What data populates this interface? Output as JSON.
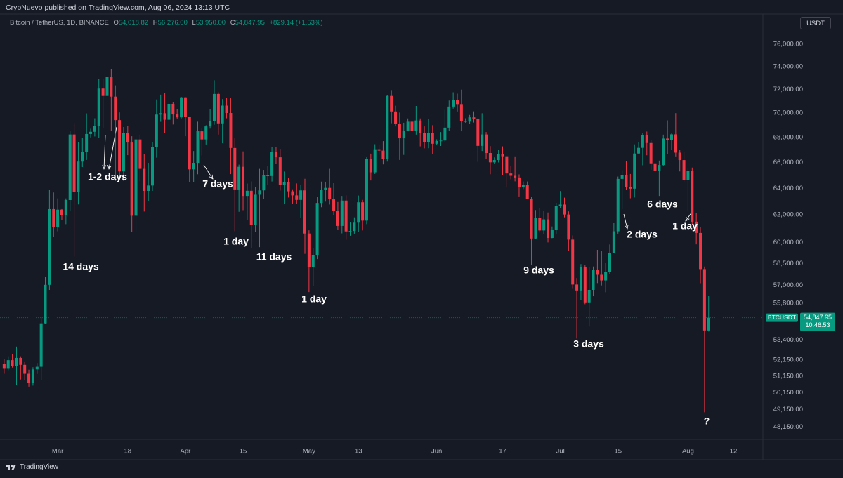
{
  "header": {
    "publisher": "CrypNuevo published on TradingView.com, Aug 06, 2024 13:13 UTC"
  },
  "footer": {
    "brand": "TradingView"
  },
  "chart_data": {
    "type": "candlestick",
    "title": "Bitcoin / TetherUS, 1D, BINANCE",
    "ohlc_legend": [
      {
        "key": "O",
        "label": "54,018.82"
      },
      {
        "key": "H",
        "label": "56,276.00"
      },
      {
        "key": "L",
        "label": "53,950.00"
      },
      {
        "key": "C",
        "label": "54,847.95"
      }
    ],
    "change": "+829.14 (+1.53%)",
    "currency": "USDT",
    "up_color": "#089981",
    "down_color": "#f23645",
    "log_scale": true,
    "grid": false,
    "xlim": [
      "2024-02-16",
      "2024-08-19"
    ],
    "ylim": [
      47480,
      77150
    ],
    "yticks": [
      {
        "value": 76000,
        "label": "76,000.00"
      },
      {
        "value": 74000,
        "label": "74,000.00"
      },
      {
        "value": 72000,
        "label": "72,000.00"
      },
      {
        "value": 70000,
        "label": "70,000.00"
      },
      {
        "value": 68000,
        "label": "68,000.00"
      },
      {
        "value": 66000,
        "label": "66,000.00"
      },
      {
        "value": 64000,
        "label": "64,000.00"
      },
      {
        "value": 62000,
        "label": "62,000.00"
      },
      {
        "value": 60000,
        "label": "60,000.00"
      },
      {
        "value": 58500,
        "label": "58,500.00"
      },
      {
        "value": 57000,
        "label": "57,000.00"
      },
      {
        "value": 55800,
        "label": "55,800.00"
      },
      {
        "value": 53400,
        "label": "53,400.00"
      },
      {
        "value": 52150,
        "label": "52,150.00"
      },
      {
        "value": 51150,
        "label": "51,150.00"
      },
      {
        "value": 50150,
        "label": "50,150.00"
      },
      {
        "value": 49150,
        "label": "49,150.00"
      },
      {
        "value": 48150,
        "label": "48,150.00"
      }
    ],
    "xticks": [
      {
        "value": "2024-03-01",
        "label": "Mar"
      },
      {
        "value": "2024-03-18",
        "label": "18"
      },
      {
        "value": "2024-04-01",
        "label": "Apr"
      },
      {
        "value": "2024-04-15",
        "label": "15"
      },
      {
        "value": "2024-05-01",
        "label": "May"
      },
      {
        "value": "2024-05-13",
        "label": "13"
      },
      {
        "value": "2024-06-01",
        "label": "Jun"
      },
      {
        "value": "2024-06-17",
        "label": "17"
      },
      {
        "value": "2024-07-01",
        "label": "Jul"
      },
      {
        "value": "2024-07-15",
        "label": "15"
      },
      {
        "value": "2024-08-01",
        "label": "Aug"
      },
      {
        "value": "2024-08-12",
        "label": "12"
      }
    ],
    "last_price": {
      "symbol": "BTCUSDT",
      "value": 54847.95,
      "label": "54,847.95",
      "countdown": "10:46:53"
    },
    "annotations": [
      "1-2 days",
      "7 days",
      "14 days",
      "1 day",
      "11 days",
      "1 day",
      "9 days",
      "3 days",
      "2 days",
      "6 days",
      "1 day",
      "?"
    ],
    "x": [
      "2024-02-17",
      "2024-02-18",
      "2024-02-19",
      "2024-02-20",
      "2024-02-21",
      "2024-02-22",
      "2024-02-23",
      "2024-02-24",
      "2024-02-25",
      "2024-02-26",
      "2024-02-27",
      "2024-02-28",
      "2024-02-29",
      "2024-03-01",
      "2024-03-02",
      "2024-03-03",
      "2024-03-04",
      "2024-03-05",
      "2024-03-06",
      "2024-03-07",
      "2024-03-08",
      "2024-03-09",
      "2024-03-10",
      "2024-03-11",
      "2024-03-12",
      "2024-03-13",
      "2024-03-14",
      "2024-03-15",
      "2024-03-16",
      "2024-03-17",
      "2024-03-18",
      "2024-03-19",
      "2024-03-20",
      "2024-03-21",
      "2024-03-22",
      "2024-03-23",
      "2024-03-24",
      "2024-03-25",
      "2024-03-26",
      "2024-03-27",
      "2024-03-28",
      "2024-03-29",
      "2024-03-30",
      "2024-03-31",
      "2024-04-01",
      "2024-04-02",
      "2024-04-03",
      "2024-04-04",
      "2024-04-05",
      "2024-04-06",
      "2024-04-07",
      "2024-04-08",
      "2024-04-09",
      "2024-04-10",
      "2024-04-11",
      "2024-04-12",
      "2024-04-13",
      "2024-04-14",
      "2024-04-15",
      "2024-04-16",
      "2024-04-17",
      "2024-04-18",
      "2024-04-19",
      "2024-04-20",
      "2024-04-21",
      "2024-04-22",
      "2024-04-23",
      "2024-04-24",
      "2024-04-25",
      "2024-04-26",
      "2024-04-27",
      "2024-04-28",
      "2024-04-29",
      "2024-04-30",
      "2024-05-01",
      "2024-05-02",
      "2024-05-03",
      "2024-05-04",
      "2024-05-05",
      "2024-05-06",
      "2024-05-07",
      "2024-05-08",
      "2024-05-09",
      "2024-05-10",
      "2024-05-11",
      "2024-05-12",
      "2024-05-13",
      "2024-05-14",
      "2024-05-15",
      "2024-05-16",
      "2024-05-17",
      "2024-05-18",
      "2024-05-19",
      "2024-05-20",
      "2024-05-21",
      "2024-05-22",
      "2024-05-23",
      "2024-05-24",
      "2024-05-25",
      "2024-05-26",
      "2024-05-27",
      "2024-05-28",
      "2024-05-29",
      "2024-05-30",
      "2024-05-31",
      "2024-06-01",
      "2024-06-02",
      "2024-06-03",
      "2024-06-04",
      "2024-06-05",
      "2024-06-06",
      "2024-06-07",
      "2024-06-08",
      "2024-06-09",
      "2024-06-10",
      "2024-06-11",
      "2024-06-12",
      "2024-06-13",
      "2024-06-14",
      "2024-06-15",
      "2024-06-16",
      "2024-06-17",
      "2024-06-18",
      "2024-06-19",
      "2024-06-20",
      "2024-06-21",
      "2024-06-22",
      "2024-06-23",
      "2024-06-24",
      "2024-06-25",
      "2024-06-26",
      "2024-06-27",
      "2024-06-28",
      "2024-06-29",
      "2024-06-30",
      "2024-07-01",
      "2024-07-02",
      "2024-07-03",
      "2024-07-04",
      "2024-07-05",
      "2024-07-06",
      "2024-07-07",
      "2024-07-08",
      "2024-07-09",
      "2024-07-10",
      "2024-07-11",
      "2024-07-12",
      "2024-07-13",
      "2024-07-14",
      "2024-07-15",
      "2024-07-16",
      "2024-07-17",
      "2024-07-18",
      "2024-07-19",
      "2024-07-20",
      "2024-07-21",
      "2024-07-22",
      "2024-07-23",
      "2024-07-24",
      "2024-07-25",
      "2024-07-26",
      "2024-07-27",
      "2024-07-28",
      "2024-07-29",
      "2024-07-30",
      "2024-07-31",
      "2024-08-01",
      "2024-08-02",
      "2024-08-03",
      "2024-08-04",
      "2024-08-05",
      "2024-08-06"
    ],
    "open": [
      51900,
      51650,
      52140,
      51780,
      52280,
      51850,
      51300,
      50730,
      51570,
      51730,
      54480,
      57040,
      62430,
      61130,
      62390,
      61990,
      63110,
      68240,
      63720,
      66070,
      66850,
      68280,
      68460,
      68930,
      72080,
      71450,
      73070,
      71390,
      69420,
      65300,
      68390,
      67590,
      61940,
      67840,
      65500,
      63800,
      64210,
      67210,
      69880,
      69990,
      69450,
      70780,
      69890,
      69650,
      71330,
      69700,
      65460,
      65970,
      68500,
      67840,
      68900,
      69360,
      71620,
      69150,
      70630,
      70010,
      67150,
      63910,
      65660,
      63420,
      63810,
      61280,
      63510,
      63840,
      64990,
      64940,
      66840,
      66410,
      64280,
      64500,
      63770,
      63460,
      63120,
      63840,
      60640,
      58250,
      59120,
      62890,
      63890,
      64030,
      63160,
      62310,
      61190,
      63070,
      60790,
      60820,
      61480,
      62940,
      61580,
      66270,
      65230,
      67050,
      66940,
      66280,
      71450,
      70140,
      69120,
      67930,
      68530,
      69290,
      68510,
      69390,
      68370,
      67640,
      68350,
      67490,
      67710,
      67750,
      68800,
      70550,
      71080,
      70760,
      69340,
      69300,
      69650,
      69510,
      67320,
      68240,
      66750,
      66010,
      66190,
      66640,
      66490,
      65140,
      64960,
      64830,
      64100,
      64250,
      63180,
      60280,
      61800,
      60860,
      61670,
      60320,
      60890,
      62680,
      62770,
      62030,
      60200,
      57060,
      56660,
      58240,
      55860,
      56700,
      58050,
      57730,
      57340,
      57900,
      59220,
      60800,
      64720,
      65040,
      64090,
      63970,
      66710,
      67160,
      68170,
      67550,
      65930,
      65370,
      65800,
      67910,
      67810,
      68250,
      66780,
      66190,
      64620,
      65350,
      61500,
      60680,
      58120,
      54018.82
    ],
    "high": [
      52200,
      52380,
      52500,
      52990,
      52380,
      52020,
      51550,
      51700,
      51960,
      54910,
      57590,
      63900,
      63680,
      63230,
      62430,
      63230,
      68500,
      69170,
      67640,
      67980,
      69980,
      68710,
      69570,
      72900,
      72900,
      73650,
      73780,
      72360,
      70060,
      68850,
      68960,
      68100,
      68120,
      68210,
      66650,
      65970,
      67620,
      71150,
      71560,
      71730,
      71550,
      70910,
      70330,
      71370,
      71350,
      69700,
      66910,
      69290,
      68720,
      69000,
      70330,
      72800,
      71760,
      71180,
      71270,
      71250,
      67930,
      65830,
      66880,
      64360,
      64520,
      64100,
      65500,
      65420,
      65700,
      67230,
      67210,
      67080,
      65290,
      64800,
      63920,
      64370,
      64240,
      64730,
      60870,
      59600,
      63320,
      64510,
      64500,
      65500,
      64390,
      62960,
      63420,
      63460,
      61490,
      61820,
      63450,
      63120,
      66450,
      66700,
      67450,
      67400,
      67700,
      71520,
      71950,
      70620,
      70050,
      69200,
      69560,
      69510,
      70600,
      69560,
      68900,
      69500,
      69000,
      67850,
      68440,
      70280,
      71060,
      71760,
      71640,
      71990,
      69570,
      69850,
      70150,
      69560,
      69990,
      68440,
      67300,
      66400,
      66980,
      67280,
      66490,
      65730,
      66480,
      65070,
      64520,
      64520,
      63370,
      62360,
      62480,
      62290,
      62180,
      61150,
      62900,
      63790,
      63290,
      62260,
      60500,
      57500,
      58470,
      58380,
      58240,
      58300,
      59470,
      59370,
      58530,
      59850,
      61420,
      64900,
      65390,
      66130,
      65100,
      67440,
      67650,
      68370,
      68480,
      67820,
      67100,
      66150,
      68230,
      69400,
      68320,
      70000,
      66990,
      66810,
      65590,
      65600,
      62160,
      61120,
      58300,
      56276
    ],
    "low": [
      51300,
      51520,
      51680,
      50620,
      50950,
      50930,
      50520,
      50580,
      51290,
      50900,
      54440,
      56700,
      60390,
      60800,
      61600,
      61320,
      62300,
      59000,
      62780,
      65640,
      66200,
      68000,
      68080,
      67940,
      68780,
      71340,
      68560,
      64550,
      64780,
      64560,
      66580,
      60770,
      60800,
      64530,
      62250,
      63050,
      63800,
      66380,
      69280,
      68370,
      68900,
      69060,
      69550,
      69560,
      68100,
      64500,
      64490,
      65080,
      66550,
      67430,
      68720,
      69040,
      68230,
      67530,
      69570,
      65090,
      60800,
      62230,
      62350,
      61600,
      59600,
      60770,
      59660,
      63180,
      64280,
      64520,
      65880,
      63830,
      62790,
      63300,
      62800,
      62830,
      61780,
      59190,
      56550,
      56940,
      58820,
      62570,
      62990,
      62770,
      62000,
      60890,
      60650,
      60190,
      60480,
      60630,
      60750,
      60860,
      61320,
      64600,
      65100,
      66600,
      65850,
      66070,
      69160,
      68900,
      66200,
      66600,
      68500,
      68500,
      68230,
      67280,
      67120,
      67130,
      66670,
      67390,
      67310,
      67620,
      68560,
      70380,
      70140,
      68500,
      69200,
      69130,
      69220,
      66050,
      66910,
      66300,
      65080,
      65880,
      66000,
      65000,
      64060,
      64690,
      64530,
      63380,
      63940,
      63170,
      58400,
      60240,
      60710,
      60600,
      60000,
      60300,
      60630,
      62520,
      61820,
      59410,
      56770,
      53500,
      56020,
      55740,
      54270,
      56270,
      57160,
      57000,
      56540,
      57780,
      59220,
      60630,
      62430,
      63900,
      63240,
      63300,
      66650,
      65780,
      66570,
      65430,
      65100,
      63420,
      65750,
      66640,
      67030,
      66480,
      65300,
      64530,
      62250,
      61230,
      59860,
      57150,
      49000,
      53950
    ],
    "close": [
      51650,
      52140,
      51780,
      52280,
      51850,
      51300,
      50730,
      51570,
      51730,
      54480,
      57040,
      62430,
      61130,
      62390,
      61990,
      63110,
      68240,
      63720,
      66070,
      66850,
      68280,
      68460,
      68930,
      72080,
      71450,
      73070,
      71390,
      69420,
      65300,
      68390,
      67590,
      61940,
      67840,
      65500,
      63800,
      64210,
      67210,
      69880,
      69990,
      69450,
      70780,
      69890,
      69650,
      71330,
      69700,
      65460,
      65970,
      68500,
      67840,
      68900,
      69360,
      71620,
      69150,
      70630,
      70010,
      67150,
      63910,
      65660,
      63420,
      63810,
      61280,
      63510,
      63840,
      64990,
      64940,
      66840,
      66410,
      64280,
      64500,
      63770,
      63460,
      63120,
      63840,
      60640,
      58250,
      59120,
      62890,
      63890,
      64030,
      63160,
      62310,
      61190,
      63070,
      60790,
      60820,
      61480,
      62940,
      61580,
      66270,
      65230,
      67050,
      66940,
      66280,
      71450,
      70140,
      69120,
      67930,
      68530,
      69290,
      68510,
      69390,
      68370,
      67640,
      68350,
      67490,
      67710,
      67750,
      68800,
      70550,
      71080,
      70760,
      69340,
      69300,
      69650,
      69510,
      67320,
      68240,
      66750,
      66010,
      66190,
      66640,
      66490,
      65140,
      64960,
      64830,
      64100,
      64250,
      63180,
      60280,
      61800,
      60860,
      61670,
      60320,
      60890,
      62680,
      62770,
      62030,
      60200,
      57060,
      56660,
      58240,
      55860,
      56700,
      58050,
      57730,
      57340,
      57900,
      59220,
      60800,
      64720,
      65040,
      64090,
      63970,
      66710,
      67160,
      68170,
      67550,
      65930,
      65370,
      65800,
      67910,
      67810,
      68250,
      66780,
      66190,
      64620,
      65350,
      61500,
      60680,
      58120,
      54018.82,
      54847.95
    ]
  }
}
